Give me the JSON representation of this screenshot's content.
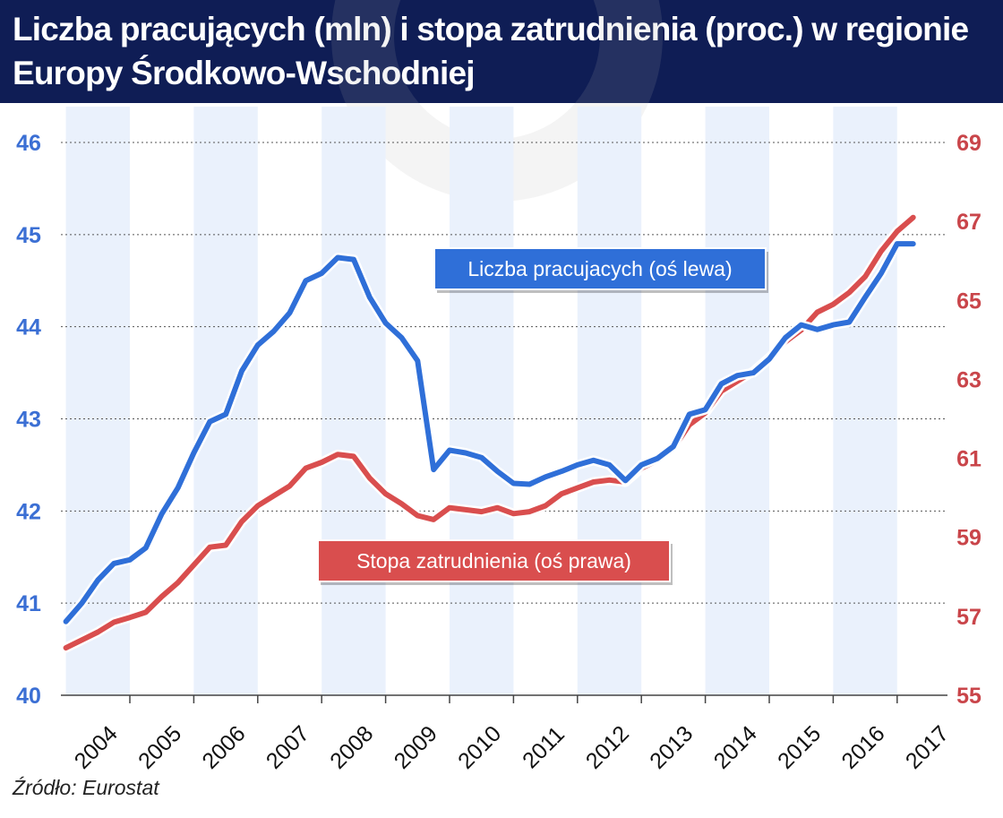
{
  "header": {
    "title": "Liczba pracujących (mln) i stopa zatrudnienia (proc.) w regionie Europy Środkowo-Wschodniej"
  },
  "source": "Źródło: Eurostat",
  "colors": {
    "header_bg": "#0f1d55",
    "left_series": "#2f6fd8",
    "right_series": "#d94e4e",
    "left_axis_text": "#3b6fd4",
    "right_axis_text": "#c9454a",
    "band": "#eaf1fc"
  },
  "chart_data": {
    "type": "line",
    "grid": true,
    "alternating_year_bands": true,
    "x_ticks": [
      "2004",
      "2005",
      "2006",
      "2007",
      "2008",
      "2009",
      "2010",
      "2011",
      "2012",
      "2013",
      "2014",
      "2015",
      "2016",
      "2017"
    ],
    "y_left": {
      "range": [
        40,
        46
      ],
      "ticks": [
        40,
        41,
        42,
        43,
        44,
        45,
        46
      ]
    },
    "y_right": {
      "range": [
        55,
        69
      ],
      "ticks": [
        55,
        57,
        59,
        61,
        63,
        65,
        67,
        69
      ]
    },
    "series": [
      {
        "name": "Liczba pracujacych (oś lewa)",
        "axis": "left",
        "x_start": 2004.0,
        "x_step": 0.25,
        "values": [
          40.8,
          41.0,
          41.25,
          41.43,
          41.47,
          41.6,
          41.97,
          42.25,
          42.63,
          42.97,
          43.05,
          43.52,
          43.8,
          43.95,
          44.15,
          44.5,
          44.58,
          44.75,
          44.73,
          44.32,
          44.04,
          43.88,
          43.63,
          42.45,
          42.66,
          42.63,
          42.58,
          42.43,
          42.3,
          42.29,
          42.37,
          42.43,
          42.5,
          42.55,
          42.5,
          42.33,
          42.5,
          42.57,
          42.7,
          43.05,
          43.1,
          43.38,
          43.47,
          43.5,
          43.65,
          43.88,
          44.02,
          43.97,
          44.02,
          44.05,
          44.32,
          44.58,
          44.9,
          44.9
        ]
      },
      {
        "name": "Stopa zatrudnienia (oś prawa)",
        "axis": "right",
        "x_start": 2004.0,
        "x_step": 0.25,
        "values": [
          56.2,
          56.4,
          56.6,
          56.85,
          56.97,
          57.1,
          57.5,
          57.85,
          58.3,
          58.75,
          58.8,
          59.4,
          59.8,
          60.05,
          60.3,
          60.75,
          60.9,
          61.1,
          61.05,
          60.5,
          60.1,
          59.85,
          59.55,
          59.45,
          59.75,
          59.7,
          59.65,
          59.75,
          59.6,
          59.65,
          59.8,
          60.1,
          60.25,
          60.4,
          60.45,
          60.4,
          60.75,
          60.95,
          61.25,
          61.85,
          62.15,
          62.7,
          62.95,
          63.2,
          63.55,
          63.95,
          64.25,
          64.7,
          64.9,
          65.2,
          65.6,
          66.25,
          66.75,
          67.1
        ]
      }
    ],
    "annotations": [
      {
        "text": "Liczba pracujacych (oś lewa)",
        "series": 0
      },
      {
        "text": "Stopa zatrudnienia (oś prawa)",
        "series": 1
      }
    ]
  }
}
